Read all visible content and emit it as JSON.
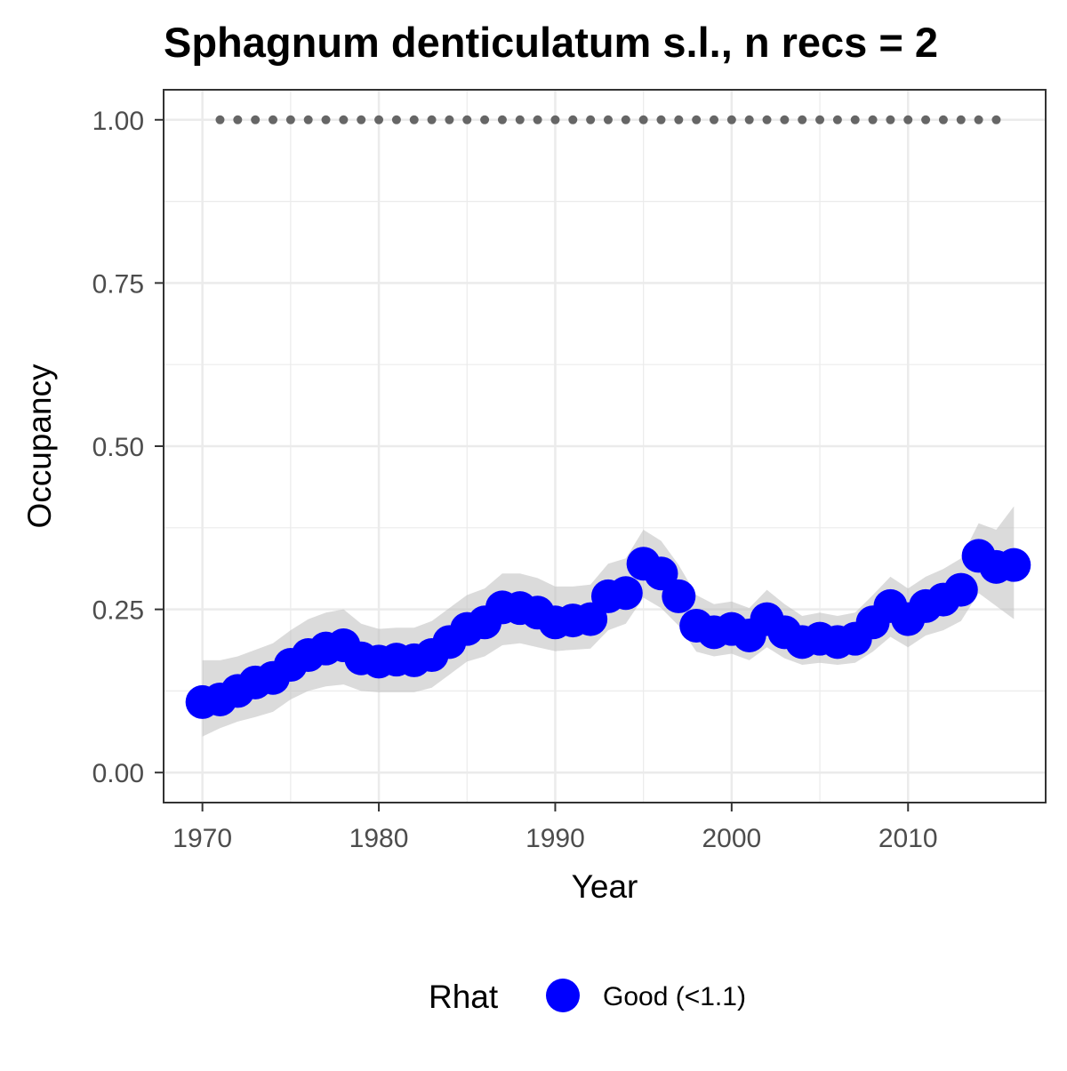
{
  "chart_data": {
    "type": "line",
    "title": "Sphagnum denticulatum s.l., n recs = 2",
    "xlabel": "Year",
    "ylabel": "Occupancy",
    "xlim": [
      1967.8,
      2017.8
    ],
    "ylim": [
      -0.046,
      1.046
    ],
    "x_ticks": [
      1970,
      1980,
      1990,
      2000,
      2010
    ],
    "x_tick_labels": [
      "1970",
      "1980",
      "1990",
      "2000",
      "2010"
    ],
    "y_ticks": [
      0,
      0.25,
      0.5,
      0.75,
      1.0
    ],
    "y_tick_labels": [
      "0.00",
      "0.25",
      "0.50",
      "0.75",
      "1.00"
    ],
    "grid": true,
    "legend": {
      "title": "Rhat",
      "position": "bottom",
      "entries": [
        {
          "label": "Good (<1.1)",
          "color": "#0000ff"
        }
      ]
    },
    "colors": {
      "points": "#0000ff",
      "ribbon": "#bebebe",
      "records": "#666666",
      "grid": "#ebebeb",
      "panel_border": "#333333"
    },
    "series": [
      {
        "x": [
          1970,
          1971,
          1972,
          1973,
          1974,
          1975,
          1976,
          1977,
          1978,
          1979,
          1980,
          1981,
          1982,
          1983,
          1984,
          1985,
          1986,
          1987,
          1988,
          1989,
          1990,
          1991,
          1992,
          1993,
          1994,
          1995,
          1996,
          1997,
          1998,
          1999,
          2000,
          2001,
          2002,
          2003,
          2004,
          2005,
          2006,
          2007,
          2008,
          2009,
          2010,
          2011,
          2012,
          2013,
          2014,
          2015,
          2016
        ],
        "values": [
          0.108,
          0.112,
          0.125,
          0.138,
          0.145,
          0.165,
          0.18,
          0.19,
          0.195,
          0.175,
          0.17,
          0.173,
          0.172,
          0.18,
          0.2,
          0.22,
          0.23,
          0.253,
          0.252,
          0.245,
          0.23,
          0.233,
          0.235,
          0.27,
          0.275,
          0.32,
          0.305,
          0.27,
          0.225,
          0.215,
          0.22,
          0.21,
          0.235,
          0.215,
          0.2,
          0.205,
          0.2,
          0.205,
          0.23,
          0.255,
          0.235,
          0.255,
          0.265,
          0.28,
          0.332,
          0.315,
          0.318
        ],
        "lower": [
          0.055,
          0.068,
          0.078,
          0.085,
          0.093,
          0.112,
          0.125,
          0.132,
          0.135,
          0.125,
          0.123,
          0.123,
          0.123,
          0.13,
          0.15,
          0.17,
          0.178,
          0.195,
          0.198,
          0.192,
          0.186,
          0.188,
          0.19,
          0.218,
          0.228,
          0.268,
          0.252,
          0.225,
          0.185,
          0.178,
          0.182,
          0.172,
          0.192,
          0.175,
          0.165,
          0.168,
          0.165,
          0.168,
          0.185,
          0.208,
          0.192,
          0.21,
          0.218,
          0.232,
          0.275,
          0.255,
          0.235
        ],
        "upper": [
          0.172,
          0.172,
          0.178,
          0.188,
          0.198,
          0.218,
          0.235,
          0.245,
          0.25,
          0.228,
          0.22,
          0.222,
          0.222,
          0.232,
          0.252,
          0.272,
          0.282,
          0.305,
          0.305,
          0.298,
          0.285,
          0.285,
          0.288,
          0.32,
          0.328,
          0.372,
          0.355,
          0.318,
          0.272,
          0.258,
          0.262,
          0.252,
          0.28,
          0.258,
          0.24,
          0.245,
          0.24,
          0.245,
          0.272,
          0.3,
          0.282,
          0.3,
          0.312,
          0.328,
          0.382,
          0.372,
          0.408
        ]
      }
    ],
    "records": {
      "x": [
        1971,
        1972,
        1973,
        1974,
        1975,
        1976,
        1977,
        1978,
        1979,
        1980,
        1981,
        1982,
        1983,
        1984,
        1985,
        1986,
        1987,
        1988,
        1989,
        1990,
        1991,
        1992,
        1993,
        1994,
        1995,
        1996,
        1997,
        1998,
        1999,
        2000,
        2001,
        2002,
        2003,
        2004,
        2005,
        2006,
        2007,
        2008,
        2009,
        2010,
        2011,
        2012,
        2013,
        2014,
        2015
      ],
      "y": 1.0
    }
  }
}
